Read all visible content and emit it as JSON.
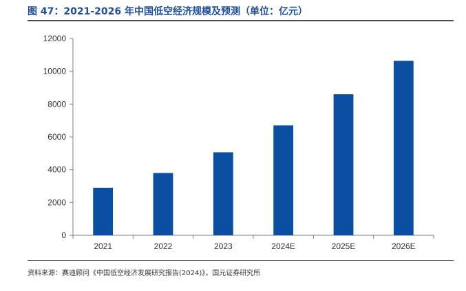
{
  "title": "图 47：2021-2026 年中国低空经济规模及预测（单位：亿元）",
  "source": "资料来源：赛迪顾问《中国低空经济发展研究报告(2024)》，国元证券研究所",
  "colors": {
    "bar": "#0b4fa3",
    "axis": "#7f7f7f",
    "title": "#1f4e9a"
  },
  "chart_data": {
    "type": "bar",
    "title": "",
    "xlabel": "",
    "ylabel": "",
    "categories": [
      "2021",
      "2022",
      "2023",
      "2024E",
      "2025E",
      "2026E"
    ],
    "values": [
      2900,
      3800,
      5060,
      6700,
      8600,
      10640
    ],
    "ylim": [
      0,
      12000
    ],
    "yticks": [
      0,
      2000,
      4000,
      6000,
      8000,
      10000,
      12000
    ],
    "grid": false,
    "legend": "none"
  }
}
